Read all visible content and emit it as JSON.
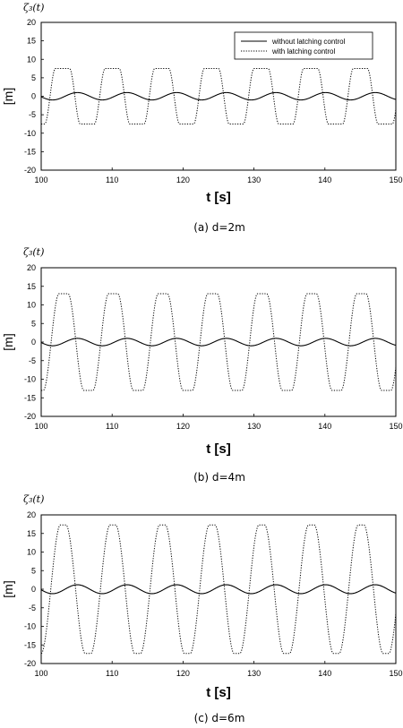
{
  "chart_data": [
    {
      "type": "line",
      "title": "ζ₃(t)",
      "caption": "(a)  d=2m",
      "xlabel": "t [s]",
      "ylabel": "[m]",
      "xlim": [
        100,
        150
      ],
      "ylim": [
        -20,
        20
      ],
      "xticks": [
        "100",
        "110",
        "120",
        "130",
        "140",
        "150"
      ],
      "yticks": [
        "20",
        "15",
        "10",
        "5",
        "0",
        "-5",
        "-10",
        "-15",
        "-20"
      ],
      "period": 7,
      "phase_start": 102,
      "legend": {
        "position": "top-right",
        "entries": [
          "without latching control",
          "with latching control"
        ]
      },
      "series": [
        {
          "name": "without latching control",
          "style": "solid",
          "kind": "sine",
          "amplitude": 1,
          "peak_x": 105.1
        },
        {
          "name": "with latching control",
          "style": "dotted",
          "kind": "latched",
          "amplitude": 7.5,
          "plateau_high": [
            102.0,
            104.0
          ],
          "plateau_low": [
            105.5,
            107.5
          ]
        }
      ]
    },
    {
      "type": "line",
      "title": "ζ₃(t)",
      "caption": "(b)  d=4m",
      "xlabel": "t [s]",
      "ylabel": "[m]",
      "xlim": [
        100,
        150
      ],
      "ylim": [
        -20,
        20
      ],
      "xticks": [
        "100",
        "110",
        "120",
        "130",
        "140",
        "150"
      ],
      "yticks": [
        "20",
        "15",
        "10",
        "5",
        "0",
        "-5",
        "-10",
        "-15",
        "-20"
      ],
      "period": 7,
      "phase_start": 102,
      "series": [
        {
          "name": "without latching control",
          "style": "solid",
          "kind": "sine",
          "amplitude": 1,
          "peak_x": 105.1
        },
        {
          "name": "with latching control",
          "style": "dotted",
          "kind": "latched",
          "amplitude": 13,
          "plateau_high": [
            102.5,
            103.8
          ],
          "plateau_low": [
            106.0,
            107.3
          ]
        }
      ]
    },
    {
      "type": "line",
      "title": "ζ₃(t)",
      "caption": "(c)  d=6m",
      "xlabel": "t [s]",
      "ylabel": "[m]",
      "xlim": [
        100,
        150
      ],
      "ylim": [
        -20,
        20
      ],
      "xticks": [
        "100",
        "110",
        "120",
        "130",
        "140",
        "150"
      ],
      "yticks": [
        "20",
        "15",
        "10",
        "5",
        "0",
        "-5",
        "-10",
        "-15",
        "-20"
      ],
      "period": 7,
      "phase_start": 102,
      "series": [
        {
          "name": "without latching control",
          "style": "solid",
          "kind": "sine",
          "amplitude": 1.2,
          "peak_x": 105.1
        },
        {
          "name": "with latching control",
          "style": "dotted",
          "kind": "latched",
          "amplitude": 17.3,
          "plateau_high": [
            102.7,
            103.5
          ],
          "plateau_low": [
            106.2,
            107.0
          ]
        }
      ]
    }
  ]
}
